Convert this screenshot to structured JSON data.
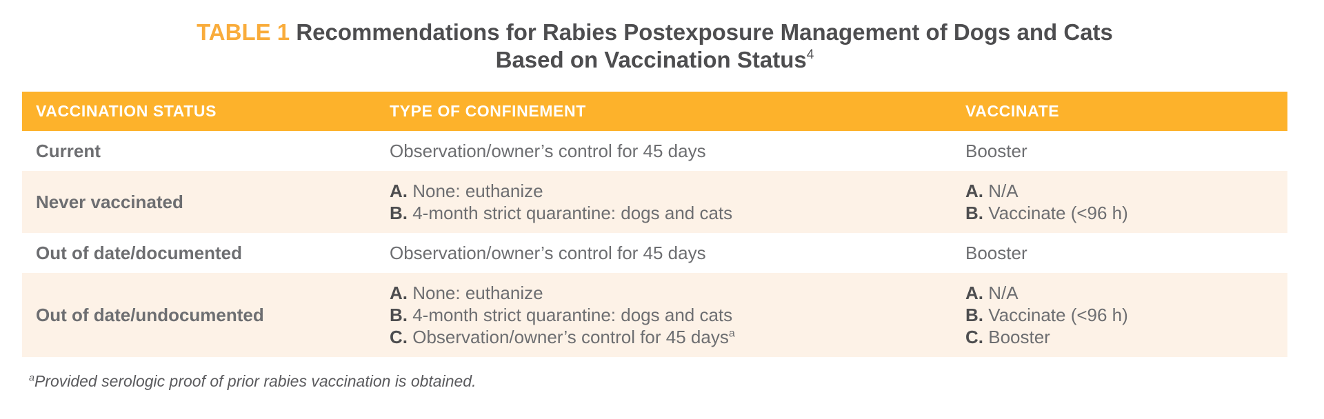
{
  "colors": {
    "header_bg": "#FDB22B",
    "header_text": "#FFFFFF",
    "stripe_bg": "#FDF2E7",
    "accent": "#F9AC3B",
    "dark_text": "#4D4D4F",
    "body_text": "#6D6E71",
    "footnote_text": "#5A5A5D"
  },
  "title": {
    "label": "TABLE 1",
    "line1": "Recommendations for Rabies Postexposure Management of Dogs and Cats",
    "line2": "Based on Vaccination Status",
    "reference_superscript": "4"
  },
  "table": {
    "columns": [
      "VACCINATION STATUS",
      "TYPE OF CONFINEMENT",
      "VACCINATE"
    ],
    "rows": [
      {
        "striped": false,
        "status": "Current",
        "confinement": [
          {
            "p": "",
            "t": "Observation/owner’s control for 45 days",
            "s": ""
          }
        ],
        "vaccinate": [
          {
            "p": "",
            "t": "Booster",
            "s": ""
          }
        ]
      },
      {
        "striped": true,
        "status": "Never vaccinated",
        "confinement": [
          {
            "p": "A.",
            "t": "None: euthanize",
            "s": ""
          },
          {
            "p": "B.",
            "t": "4-month strict quarantine: dogs and cats",
            "s": ""
          }
        ],
        "vaccinate": [
          {
            "p": "A.",
            "t": "N/A",
            "s": ""
          },
          {
            "p": "B.",
            "t": "Vaccinate (<96 h)",
            "s": ""
          }
        ]
      },
      {
        "striped": false,
        "status": "Out of date/documented",
        "confinement": [
          {
            "p": "",
            "t": "Observation/owner’s control for 45 days",
            "s": ""
          }
        ],
        "vaccinate": [
          {
            "p": "",
            "t": "Booster",
            "s": ""
          }
        ]
      },
      {
        "striped": true,
        "status": "Out of date/undocumented",
        "confinement": [
          {
            "p": "A.",
            "t": "None: euthanize",
            "s": ""
          },
          {
            "p": "B.",
            "t": "4-month strict quarantine: dogs and cats",
            "s": ""
          },
          {
            "p": "C.",
            "t": "Observation/owner’s control for 45 days",
            "s": "a"
          }
        ],
        "vaccinate": [
          {
            "p": "A.",
            "t": "N/A",
            "s": ""
          },
          {
            "p": "B.",
            "t": "Vaccinate (<96 h)",
            "s": ""
          },
          {
            "p": "C.",
            "t": "Booster",
            "s": ""
          }
        ]
      }
    ]
  },
  "footnote": {
    "superscript": "a",
    "text": "Provided serologic proof of prior rabies vaccination is obtained."
  }
}
